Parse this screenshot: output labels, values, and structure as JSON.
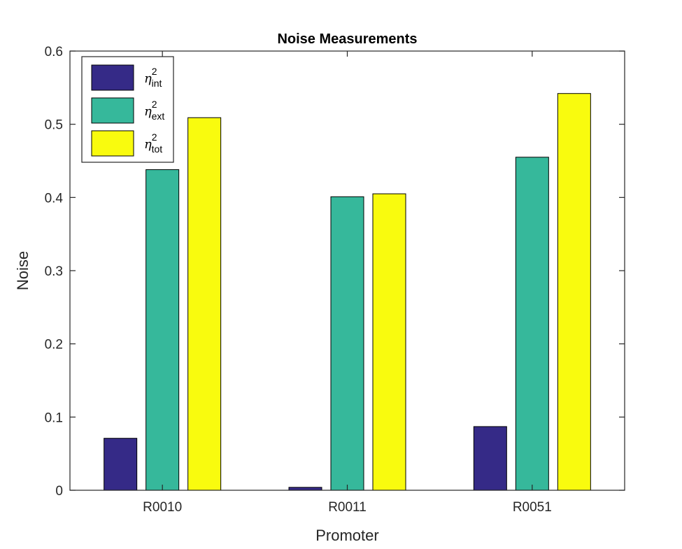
{
  "chart_data": {
    "type": "bar",
    "title": "Noise Measurements",
    "xlabel": "Promoter",
    "ylabel": "Noise",
    "categories": [
      "R0010",
      "R0011",
      "R0051"
    ],
    "ylim": [
      0,
      0.6
    ],
    "yticks": [
      "0",
      "0.1",
      "0.2",
      "0.3",
      "0.4",
      "0.5",
      "0.6"
    ],
    "grid": false,
    "legend_position": "top-left",
    "series": [
      {
        "name": "η",
        "superscript": "2",
        "subscript": "int",
        "color": "#352a87",
        "values": [
          0.071,
          0.004,
          0.087
        ]
      },
      {
        "name": "η",
        "superscript": "2",
        "subscript": "ext",
        "color": "#36b89b",
        "values": [
          0.438,
          0.401,
          0.455
        ]
      },
      {
        "name": "η",
        "superscript": "2",
        "subscript": "tot",
        "color": "#f9fb0e",
        "values": [
          0.509,
          0.405,
          0.542
        ]
      }
    ]
  }
}
